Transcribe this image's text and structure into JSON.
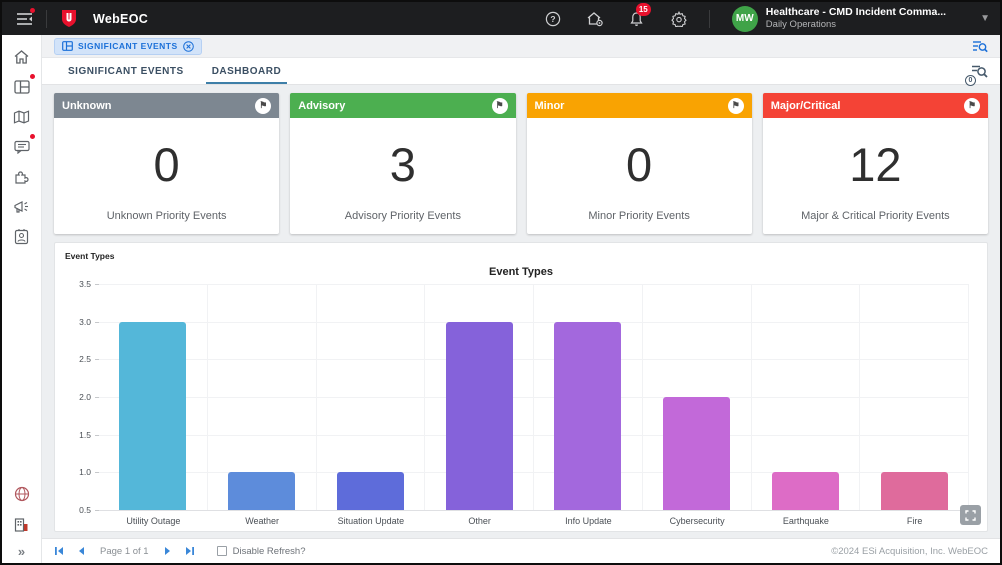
{
  "header": {
    "app_name": "WebEOC",
    "notification_count": "15",
    "avatar_initials": "MW",
    "org_name": "Healthcare - CMD Incident Comma...",
    "org_subtitle": "Daily Operations"
  },
  "sidebar": {
    "icons": [
      "home-icon",
      "boards-icon",
      "map-icon",
      "messages-icon",
      "plugins-icon",
      "announcements-icon",
      "contacts-icon",
      "globe-icon",
      "organization-icon",
      "expand-chevrons-icon"
    ],
    "expand_glyph": "»"
  },
  "chip_bar": {
    "chip_label": "SIGNIFICANT EVENTS"
  },
  "tabs": [
    {
      "label": "SIGNIFICANT EVENTS",
      "active": false
    },
    {
      "label": "DASHBOARD",
      "active": true
    }
  ],
  "filter_results_badge": "0",
  "cards": [
    {
      "title": "Unknown",
      "value": "0",
      "label": "Unknown Priority Events",
      "color": "#7d8791"
    },
    {
      "title": "Advisory",
      "value": "3",
      "label": "Advisory Priority Events",
      "color": "#4caf50"
    },
    {
      "title": "Minor",
      "value": "0",
      "label": "Minor Priority Events",
      "color": "#f9a302"
    },
    {
      "title": "Major/Critical",
      "value": "12",
      "label": "Major & Critical Priority Events",
      "color": "#f44336"
    }
  ],
  "chart_panel": {
    "header_label": "Event Types"
  },
  "chart_data": {
    "type": "bar",
    "title": "Event Types",
    "categories": [
      "Utility Outage",
      "Weather",
      "Situation Update",
      "Other",
      "Info Update",
      "Cybersecurity",
      "Earthquake",
      "Fire"
    ],
    "values": [
      3,
      1,
      1,
      3,
      3,
      2,
      1,
      1
    ],
    "bar_colors": [
      "#54b7d9",
      "#5d8cdb",
      "#5e6cda",
      "#8562da",
      "#a368dd",
      "#c269d9",
      "#dd6cc6",
      "#df6b9c"
    ],
    "xlabel": "",
    "ylabel": "",
    "ylim": [
      0.5,
      3.5
    ],
    "yticks": [
      "3.5",
      "3.0",
      "2.5",
      "2.0",
      "1.5",
      "1.0",
      "0.5"
    ],
    "grid": true,
    "legend": false
  },
  "footer": {
    "page_text": "Page 1 of 1",
    "refresh_label": "Disable Refresh?",
    "copyright": "©2024 ESi Acquisition, Inc. WebEOC"
  },
  "colors": {
    "accent_blue": "#1a6fd8",
    "topbar_bg": "#1d1e20",
    "badge_red": "#e8112d",
    "avatar_green": "#3fa348",
    "tab_underline": "#3e7fa8"
  }
}
